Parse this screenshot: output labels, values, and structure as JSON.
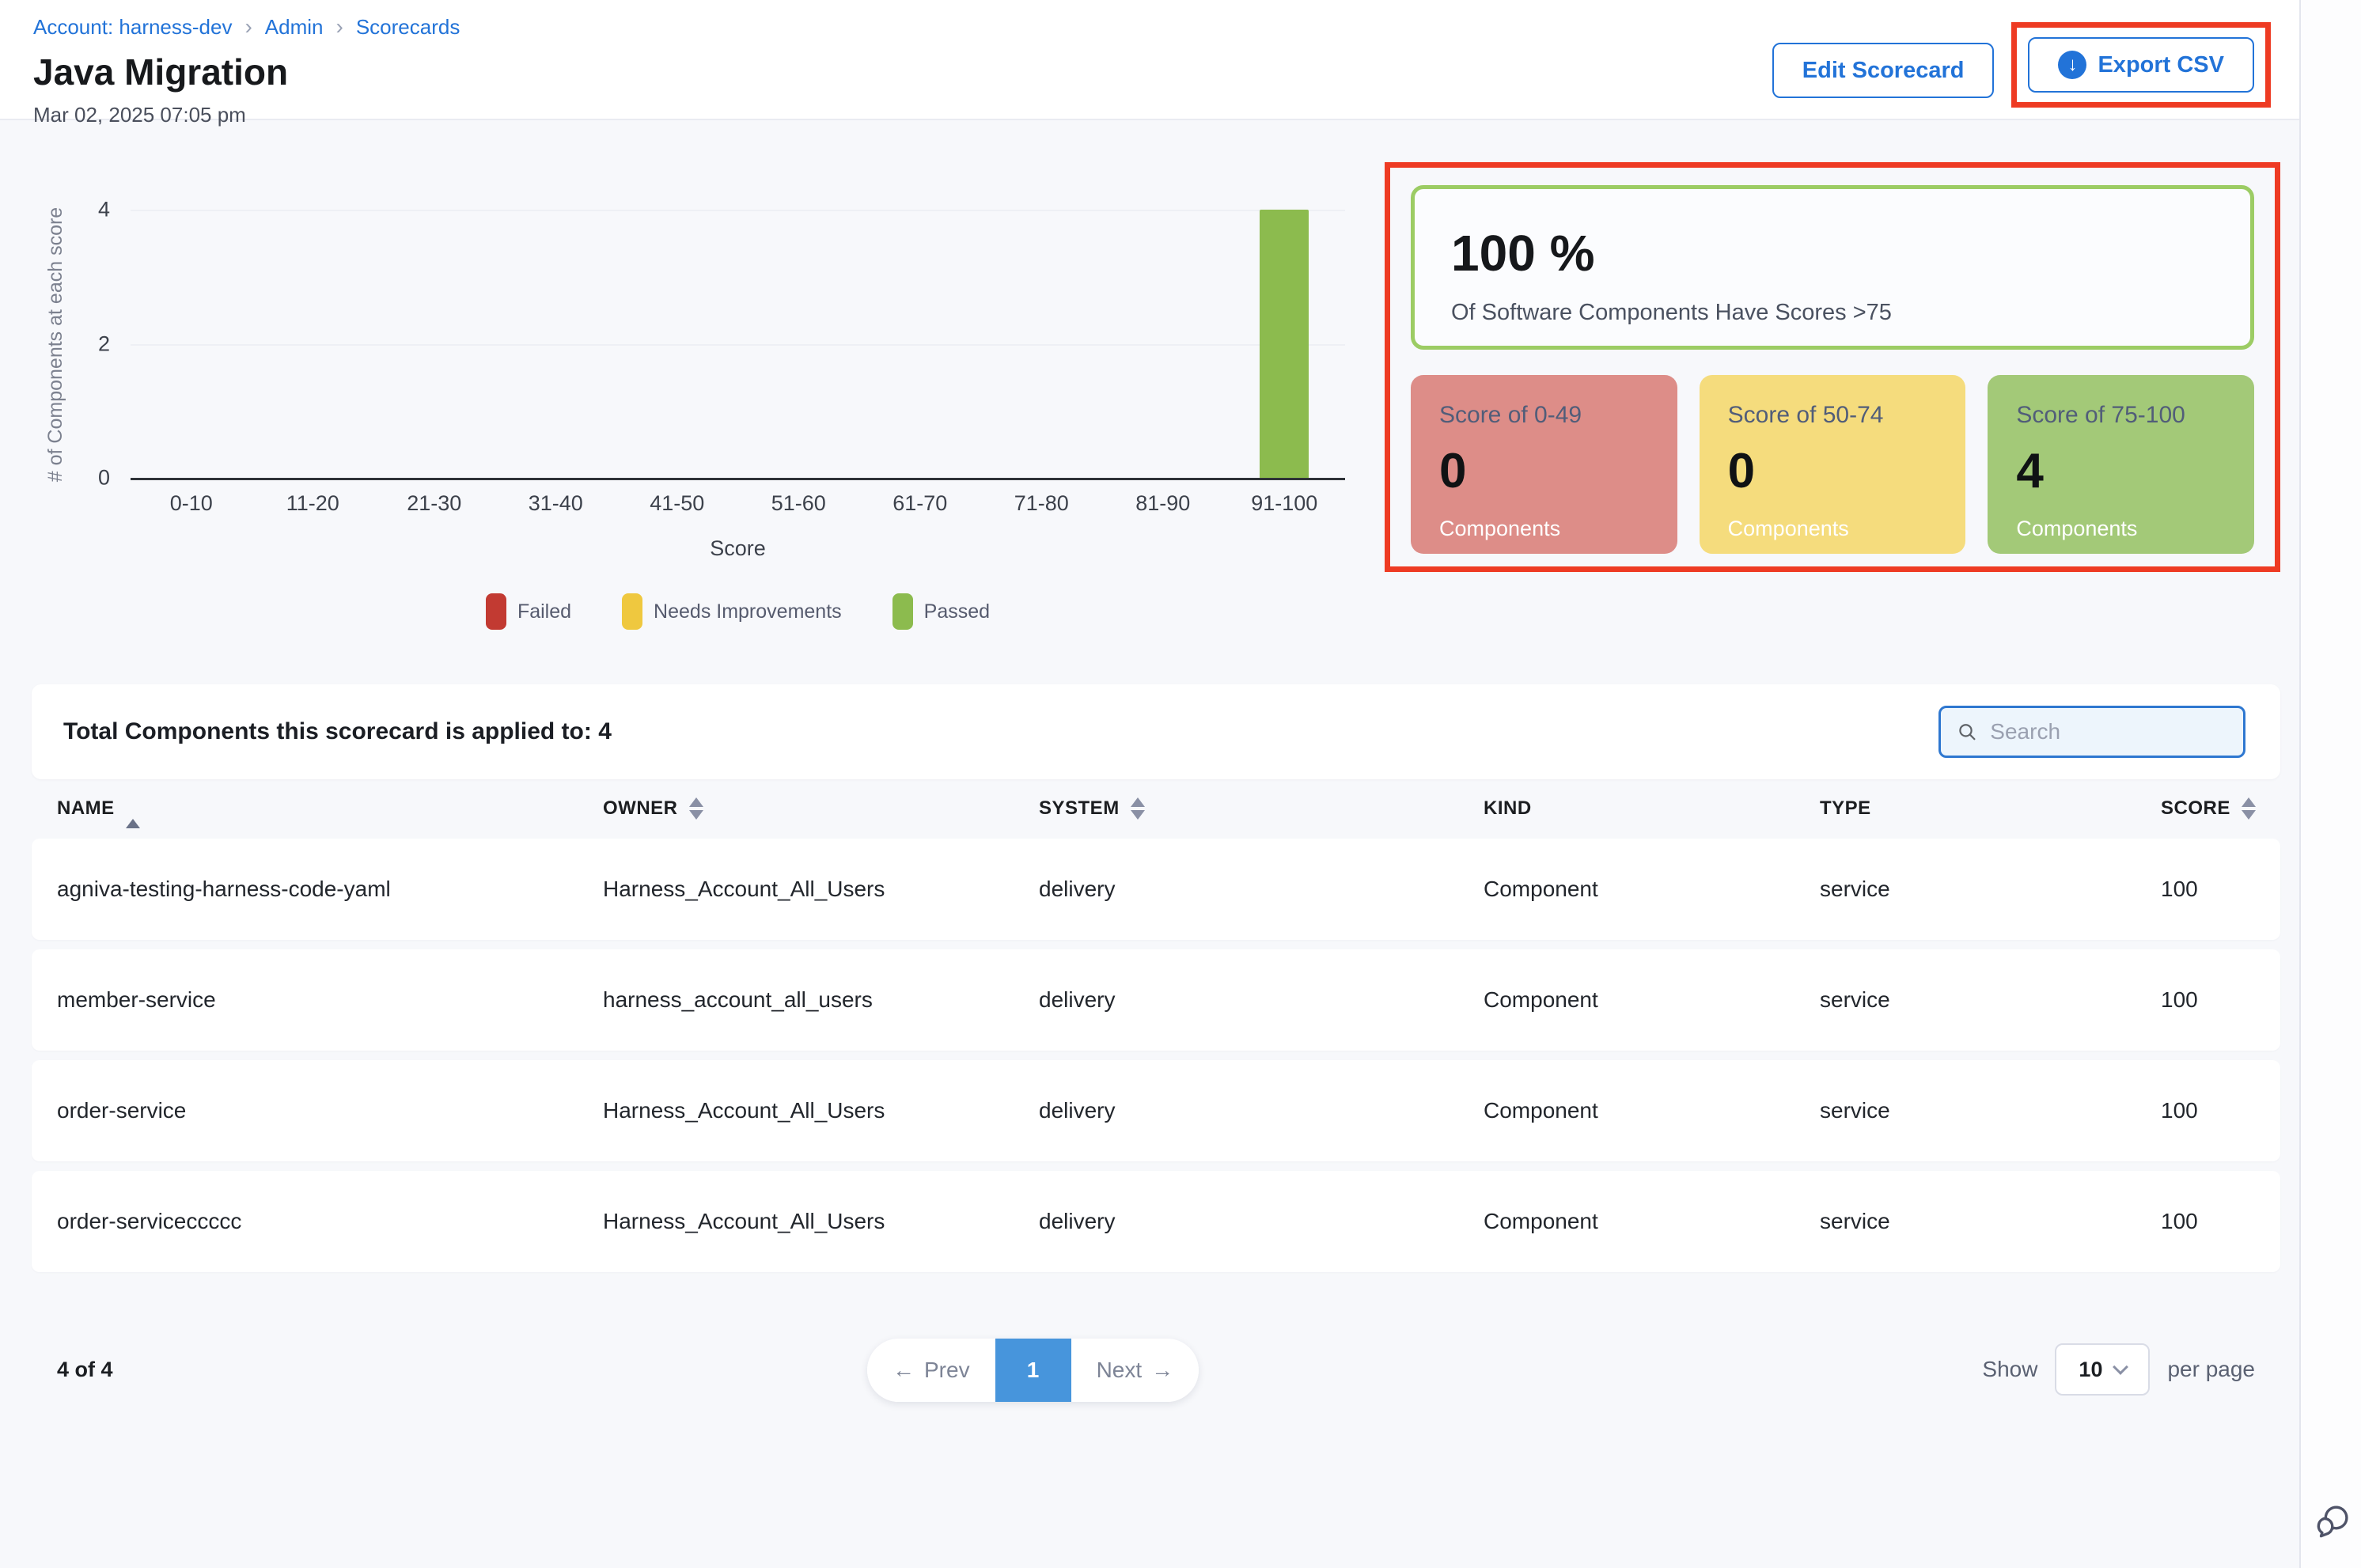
{
  "breadcrumb": {
    "items": [
      "Account: harness-dev",
      "Admin",
      "Scorecards"
    ],
    "separator": "›"
  },
  "header": {
    "title": "Java Migration",
    "date": "Mar 02, 2025 07:05 pm",
    "edit_button": "Edit Scorecard",
    "export_button": "Export CSV",
    "download_glyph": "↓"
  },
  "chart_data": {
    "type": "bar",
    "title": "",
    "categories": [
      "0-10",
      "11-20",
      "21-30",
      "31-40",
      "41-50",
      "51-60",
      "61-70",
      "71-80",
      "81-90",
      "91-100"
    ],
    "values": [
      0,
      0,
      0,
      0,
      0,
      0,
      0,
      0,
      0,
      4
    ],
    "xlabel": "Score",
    "ylabel": "# of Components at each score",
    "yticks": [
      0,
      2,
      4
    ],
    "ylim": [
      0,
      4
    ],
    "grid": true,
    "bar_color": "#8cbb4e",
    "legend": {
      "position": "bottom",
      "entries": [
        {
          "label": "Failed",
          "color": "#c23a32"
        },
        {
          "label": "Needs Improvements",
          "color": "#efc83f"
        },
        {
          "label": "Passed",
          "color": "#8cbb4e"
        }
      ]
    }
  },
  "summary": {
    "percent": "100 %",
    "caption": "Of Software Components Have Scores >75",
    "border_color": "#9ccc64",
    "cards": [
      {
        "title": "Score of 0-49",
        "value": "0",
        "label": "Components",
        "color": "#dd8d88"
      },
      {
        "title": "Score of 50-74",
        "value": "0",
        "label": "Components",
        "color": "#f5dc7d"
      },
      {
        "title": "Score of 75-100",
        "value": "4",
        "label": "Components",
        "color": "#a3c978"
      }
    ]
  },
  "table": {
    "total_label": "Total Components this scorecard is applied to: 4",
    "search_placeholder": "Search",
    "columns": [
      {
        "label": "NAME",
        "sort": "asc"
      },
      {
        "label": "OWNER",
        "sort": "both"
      },
      {
        "label": "SYSTEM",
        "sort": "both"
      },
      {
        "label": "KIND",
        "sort": "none"
      },
      {
        "label": "TYPE",
        "sort": "none"
      },
      {
        "label": "SCORE",
        "sort": "both"
      }
    ],
    "rows": [
      {
        "name": "agniva-testing-harness-code-yaml",
        "owner": "Harness_Account_All_Users",
        "system": "delivery",
        "kind": "Component",
        "type": "service",
        "score": "100"
      },
      {
        "name": "member-service",
        "owner": "harness_account_all_users",
        "system": "delivery",
        "kind": "Component",
        "type": "service",
        "score": "100"
      },
      {
        "name": "order-service",
        "owner": "Harness_Account_All_Users",
        "system": "delivery",
        "kind": "Component",
        "type": "service",
        "score": "100"
      },
      {
        "name": "order-serviceccccc",
        "owner": "Harness_Account_All_Users",
        "system": "delivery",
        "kind": "Component",
        "type": "service",
        "score": "100"
      }
    ]
  },
  "footer": {
    "count": "4 of 4",
    "prev": "Prev",
    "prev_arrow": "←",
    "page": "1",
    "next": "Next",
    "next_arrow": "→",
    "show": "Show",
    "page_size": "10",
    "per_page": "per page"
  },
  "colors": {
    "accent_blue": "#2273d8",
    "pagination_active": "#4795dc",
    "annotation_red": "#ee3b23",
    "page_background": "#f7f8fb"
  }
}
